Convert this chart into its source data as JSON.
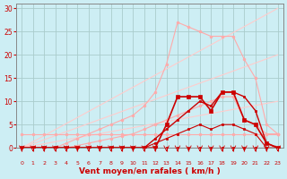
{
  "title": "",
  "xlabel": "Vent moyen/en rafales ( km/h )",
  "ylabel": "",
  "background_color": "#cdeef4",
  "grid_color": "#aacccc",
  "xlim": [
    -0.5,
    23.5
  ],
  "ylim": [
    0,
    31
  ],
  "yticks": [
    0,
    5,
    10,
    15,
    20,
    25,
    30
  ],
  "xticks": [
    0,
    1,
    2,
    3,
    4,
    5,
    6,
    7,
    8,
    9,
    10,
    11,
    12,
    13,
    14,
    15,
    16,
    17,
    18,
    19,
    20,
    21,
    22,
    23
  ],
  "series": [
    {
      "x": [
        0,
        1,
        2,
        3,
        4,
        5,
        6,
        7,
        8,
        9,
        10,
        11,
        12,
        13,
        14,
        15,
        16,
        17,
        18,
        19,
        20,
        21,
        22,
        23
      ],
      "y": [
        3,
        3,
        3,
        3,
        3,
        3,
        3,
        3,
        3,
        3,
        3,
        3,
        3,
        3,
        3,
        3,
        3,
        3,
        3,
        3,
        3,
        3,
        3,
        3
      ],
      "color": "#ffaaaa",
      "linewidth": 0.8,
      "marker": "o",
      "markersize": 2.0,
      "zorder": 2
    },
    {
      "x": [
        0,
        1,
        2,
        3,
        4,
        5,
        6,
        7,
        8,
        9,
        10,
        11,
        12,
        13,
        14,
        15,
        16,
        17,
        18,
        19,
        20,
        21,
        22,
        23
      ],
      "y": [
        0,
        0,
        0,
        0,
        0,
        0.5,
        1,
        1.5,
        2,
        2.5,
        3,
        4,
        5,
        6,
        7,
        8,
        9,
        10,
        11,
        11,
        6,
        5,
        3,
        3
      ],
      "color": "#ffaaaa",
      "linewidth": 0.8,
      "marker": "o",
      "markersize": 2.0,
      "zorder": 2
    },
    {
      "x": [
        0,
        1,
        2,
        3,
        4,
        5,
        6,
        7,
        8,
        9,
        10,
        11,
        12,
        13,
        14,
        15,
        16,
        17,
        18,
        19,
        20,
        21,
        22,
        23
      ],
      "y": [
        0,
        0,
        0,
        0,
        1,
        2,
        3,
        4,
        5,
        6,
        7,
        9,
        12,
        18,
        27,
        26,
        25,
        24,
        24,
        24,
        19,
        15,
        5,
        3
      ],
      "color": "#ffaaaa",
      "linewidth": 0.8,
      "marker": "o",
      "markersize": 2.0,
      "zorder": 2
    },
    {
      "x": [
        0,
        23
      ],
      "y": [
        0,
        30
      ],
      "color": "#ffcccc",
      "linewidth": 0.8,
      "marker": null,
      "markersize": 0,
      "zorder": 1
    },
    {
      "x": [
        0,
        23
      ],
      "y": [
        0,
        20
      ],
      "color": "#ffcccc",
      "linewidth": 0.8,
      "marker": null,
      "markersize": 0,
      "zorder": 1
    },
    {
      "x": [
        0,
        23
      ],
      "y": [
        0,
        10
      ],
      "color": "#ffcccc",
      "linewidth": 0.8,
      "marker": null,
      "markersize": 0,
      "zorder": 1
    },
    {
      "x": [
        0,
        1,
        2,
        3,
        4,
        5,
        6,
        7,
        8,
        9,
        10,
        11,
        12,
        13,
        14,
        15,
        16,
        17,
        18,
        19,
        20,
        21,
        22,
        23
      ],
      "y": [
        0,
        0,
        0,
        0,
        0,
        0,
        0,
        0,
        0,
        0,
        0,
        0,
        0,
        0,
        0,
        0,
        0,
        0,
        0,
        0,
        0,
        0,
        0,
        0
      ],
      "color": "#cc0000",
      "linewidth": 0.8,
      "marker": "s",
      "markersize": 1.8,
      "zorder": 4
    },
    {
      "x": [
        0,
        1,
        2,
        3,
        4,
        5,
        6,
        7,
        8,
        9,
        10,
        11,
        12,
        13,
        14,
        15,
        16,
        17,
        18,
        19,
        20,
        21,
        22,
        23
      ],
      "y": [
        0,
        0,
        0,
        0,
        0,
        0,
        0,
        0,
        0,
        0,
        0,
        0,
        1,
        2,
        3,
        4,
        5,
        4,
        5,
        5,
        4,
        3,
        0,
        0
      ],
      "color": "#cc0000",
      "linewidth": 0.8,
      "marker": "s",
      "markersize": 1.8,
      "zorder": 4
    },
    {
      "x": [
        0,
        1,
        2,
        3,
        4,
        5,
        6,
        7,
        8,
        9,
        10,
        11,
        12,
        13,
        14,
        15,
        16,
        17,
        18,
        19,
        20,
        21,
        22,
        23
      ],
      "y": [
        0,
        0,
        0,
        0,
        0,
        0,
        0,
        0,
        0,
        0,
        0,
        0,
        2,
        4,
        6,
        8,
        10,
        9,
        12,
        12,
        11,
        8,
        1,
        0
      ],
      "color": "#cc0000",
      "linewidth": 1.0,
      "marker": "s",
      "markersize": 2.0,
      "zorder": 4
    },
    {
      "x": [
        0,
        1,
        2,
        3,
        4,
        5,
        6,
        7,
        8,
        9,
        10,
        11,
        12,
        13,
        14,
        15,
        16,
        17,
        18,
        19,
        20,
        21,
        22,
        23
      ],
      "y": [
        0,
        0,
        0,
        0,
        0,
        0,
        0,
        0,
        0,
        0,
        0,
        0,
        0,
        5,
        11,
        11,
        11,
        8,
        12,
        12,
        6,
        5,
        1,
        0
      ],
      "color": "#cc0000",
      "linewidth": 1.2,
      "marker": "s",
      "markersize": 2.5,
      "zorder": 4
    }
  ],
  "xlabel_color": "#cc0000",
  "tick_color": "#cc0000",
  "ytick_color": "#cc0000",
  "axis_color": "#888888"
}
